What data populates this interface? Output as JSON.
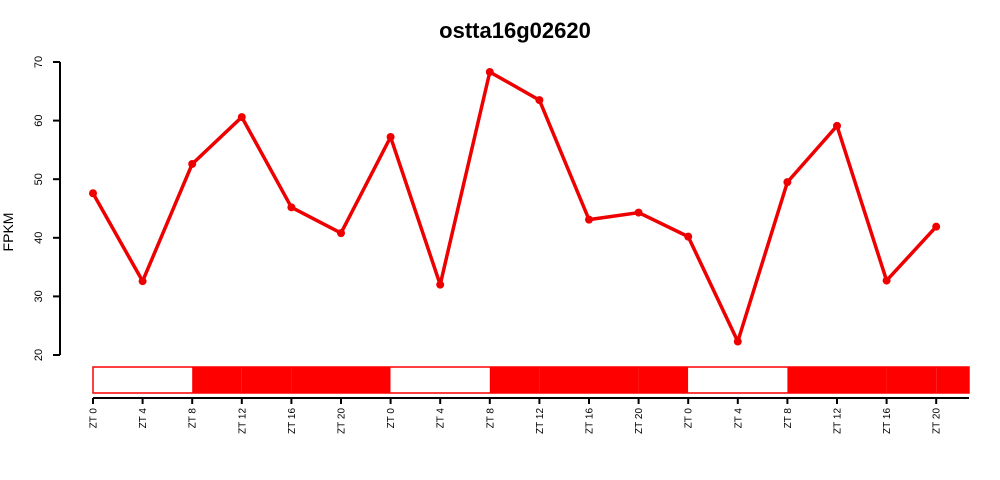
{
  "chart_data": {
    "type": "line",
    "title": "ostta16g02620",
    "ylabel": "FPKM",
    "xlabel": "",
    "ylim": [
      20,
      70
    ],
    "yticks": [
      20,
      30,
      40,
      50,
      60,
      70
    ],
    "grid": false,
    "legend": "none",
    "categories": [
      "ZT 0",
      "ZT 4",
      "ZT 8",
      "ZT 12",
      "ZT 16",
      "ZT 20",
      "ZT 0",
      "ZT 4",
      "ZT 8",
      "ZT 12",
      "ZT 16",
      "ZT 20",
      "ZT 0",
      "ZT 4",
      "ZT 8",
      "ZT 12",
      "ZT 16",
      "ZT 20"
    ],
    "series": [
      {
        "values": [
          47.6,
          32.6,
          52.6,
          60.6,
          45.2,
          40.8,
          57.2,
          32.0,
          68.3,
          63.5,
          43.1,
          44.3,
          40.2,
          22.3,
          49.5,
          59.1,
          32.7,
          41.9
        ]
      }
    ],
    "light_dark_bar": [
      "light",
      "light",
      "dark",
      "dark",
      "dark",
      "dark",
      "light",
      "light",
      "dark",
      "dark",
      "dark",
      "dark",
      "light",
      "light",
      "dark",
      "dark",
      "dark",
      "dark"
    ],
    "colors": {
      "line": "#ee0000",
      "dark": "#ff0000",
      "light": "#ffffff",
      "axis": "#000000"
    }
  }
}
